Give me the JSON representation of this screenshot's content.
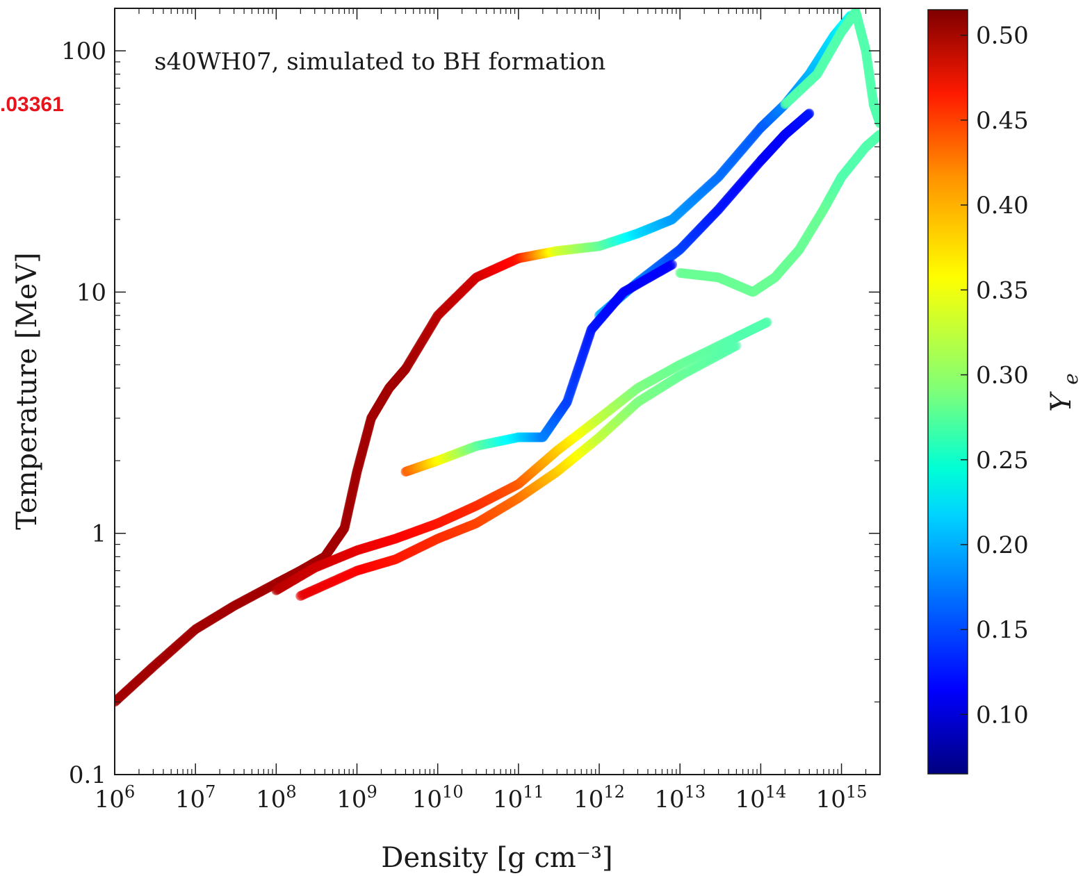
{
  "page_label": ".03361",
  "chart_data": {
    "type": "scatter",
    "annotation": "s40WH07, simulated to BH formation",
    "xlabel": "Density [g cm⁻³]",
    "ylabel": "Temperature [MeV]",
    "x_scale": "log",
    "y_scale": "log",
    "xlim": [
      1000000.0,
      3000000000000000.0
    ],
    "ylim": [
      0.1,
      150
    ],
    "x_ticks": [
      {
        "v": 1000000.0,
        "base": "10",
        "exp": "6"
      },
      {
        "v": 10000000.0,
        "base": "10",
        "exp": "7"
      },
      {
        "v": 100000000.0,
        "base": "10",
        "exp": "8"
      },
      {
        "v": 1000000000.0,
        "base": "10",
        "exp": "9"
      },
      {
        "v": 10000000000.0,
        "base": "10",
        "exp": "10"
      },
      {
        "v": 100000000000.0,
        "base": "10",
        "exp": "11"
      },
      {
        "v": 1000000000000.0,
        "base": "10",
        "exp": "12"
      },
      {
        "v": 10000000000000.0,
        "base": "10",
        "exp": "13"
      },
      {
        "v": 100000000000000.0,
        "base": "10",
        "exp": "14"
      },
      {
        "v": 1000000000000000.0,
        "base": "10",
        "exp": "15"
      }
    ],
    "y_ticks": [
      {
        "v": 0.1,
        "label": "0.1"
      },
      {
        "v": 1,
        "label": "1"
      },
      {
        "v": 10,
        "label": "10"
      },
      {
        "v": 100,
        "label": "100"
      }
    ],
    "colorbar": {
      "label": "Y_e",
      "colormap": "jet",
      "range": [
        0.065,
        0.515
      ],
      "ticks": [
        "0.10",
        "0.15",
        "0.20",
        "0.25",
        "0.30",
        "0.35",
        "0.40",
        "0.45",
        "0.50"
      ],
      "tick_values": [
        0.1,
        0.15,
        0.2,
        0.25,
        0.3,
        0.35,
        0.4,
        0.45,
        0.5
      ]
    },
    "series": [
      {
        "points": [
          [
            1000000.0,
            0.2
          ],
          [
            3000000.0,
            0.28
          ],
          [
            10000000.0,
            0.4
          ],
          [
            30000000.0,
            0.5
          ],
          [
            100000000.0,
            0.62
          ],
          [
            200000000.0,
            0.7
          ],
          [
            400000000.0,
            0.8
          ],
          [
            700000000.0,
            1.05
          ],
          [
            1000000000.0,
            1.8
          ],
          [
            1500000000.0,
            3.0
          ],
          [
            2500000000.0,
            4.0
          ],
          [
            4000000000.0,
            4.8
          ],
          [
            10000000000.0,
            8.0
          ],
          [
            30000000000.0,
            11.5
          ],
          [
            100000000000.0,
            13.8
          ]
        ],
        "ye": [
          0.5,
          0.5,
          0.5,
          0.5,
          0.5,
          0.5,
          0.5,
          0.5,
          0.5,
          0.5,
          0.5,
          0.5,
          0.49,
          0.48,
          0.45
        ]
      },
      {
        "points": [
          [
            100000000.0,
            0.58
          ],
          [
            300000000.0,
            0.72
          ],
          [
            1000000000.0,
            0.85
          ],
          [
            3000000000.0,
            0.95
          ],
          [
            10000000000.0,
            1.1
          ],
          [
            30000000000.0,
            1.3
          ],
          [
            100000000000.0,
            1.6
          ],
          [
            300000000000.0,
            2.2
          ],
          [
            1000000000000.0,
            3.0
          ],
          [
            3000000000000.0,
            4.0
          ],
          [
            10000000000000.0,
            5.0
          ],
          [
            50000000000000.0,
            6.5
          ],
          [
            120000000000000.0,
            7.5
          ]
        ],
        "ye": [
          0.49,
          0.48,
          0.47,
          0.46,
          0.45,
          0.44,
          0.42,
          0.37,
          0.32,
          0.29,
          0.28,
          0.27,
          0.27
        ]
      },
      {
        "points": [
          [
            200000000.0,
            0.55
          ],
          [
            1000000000.0,
            0.7
          ],
          [
            3000000000.0,
            0.78
          ],
          [
            10000000000.0,
            0.95
          ],
          [
            30000000000.0,
            1.1
          ],
          [
            100000000000.0,
            1.4
          ],
          [
            300000000000.0,
            1.8
          ],
          [
            1000000000000.0,
            2.5
          ],
          [
            3000000000000.0,
            3.5
          ],
          [
            10000000000000.0,
            4.5
          ],
          [
            50000000000000.0,
            6.0
          ]
        ],
        "ye": [
          0.47,
          0.46,
          0.45,
          0.44,
          0.43,
          0.41,
          0.37,
          0.32,
          0.29,
          0.28,
          0.27
        ]
      },
      {
        "points": [
          [
            100000000000.0,
            13.8
          ],
          [
            300000000000.0,
            14.8
          ],
          [
            1000000000000.0,
            15.5
          ],
          [
            3000000000000.0,
            17.5
          ],
          [
            8000000000000.0,
            20.0
          ],
          [
            30000000000000.0,
            30.0
          ],
          [
            100000000000000.0,
            48.0
          ],
          [
            200000000000000.0,
            60.0
          ],
          [
            400000000000000.0,
            80.0
          ],
          [
            800000000000000.0,
            115.0
          ],
          [
            1300000000000000.0,
            140.0
          ]
        ],
        "ye": [
          0.45,
          0.33,
          0.28,
          0.22,
          0.19,
          0.17,
          0.16,
          0.18,
          0.2,
          0.22,
          0.24
        ]
      },
      {
        "points": [
          [
            1000000000000.0,
            8.0
          ],
          [
            3000000000000.0,
            11.0
          ],
          [
            10000000000000.0,
            15.0
          ],
          [
            30000000000000.0,
            22.0
          ],
          [
            100000000000000.0,
            35.0
          ],
          [
            200000000000000.0,
            45.0
          ],
          [
            400000000000000.0,
            55.0
          ]
        ],
        "ye": [
          0.2,
          0.18,
          0.15,
          0.13,
          0.12,
          0.12,
          0.13
        ]
      },
      {
        "points": [
          [
            4000000000.0,
            1.8
          ],
          [
            10000000000.0,
            2.0
          ],
          [
            30000000000.0,
            2.3
          ],
          [
            100000000000.0,
            2.5
          ],
          [
            200000000000.0,
            2.5
          ],
          [
            400000000000.0,
            3.5
          ],
          [
            800000000000.0,
            7.0
          ],
          [
            2000000000000.0,
            10.0
          ],
          [
            8000000000000.0,
            13.0
          ]
        ],
        "ye": [
          0.42,
          0.35,
          0.28,
          0.22,
          0.18,
          0.15,
          0.13,
          0.12,
          0.12
        ]
      },
      {
        "points": [
          [
            10000000000000.0,
            12.0
          ],
          [
            30000000000000.0,
            11.5
          ],
          [
            80000000000000.0,
            10.0
          ],
          [
            150000000000000.0,
            11.5
          ],
          [
            300000000000000.0,
            15.0
          ],
          [
            600000000000000.0,
            22.0
          ],
          [
            1000000000000000.0,
            30.0
          ],
          [
            2000000000000000.0,
            40.0
          ],
          [
            3000000000000000.0,
            45.0
          ]
        ],
        "ye": [
          0.28,
          0.28,
          0.28,
          0.28,
          0.28,
          0.28,
          0.27,
          0.27,
          0.27
        ]
      },
      {
        "points": [
          [
            200000000000000.0,
            60.0
          ],
          [
            500000000000000.0,
            80.0
          ],
          [
            1000000000000000.0,
            120.0
          ],
          [
            1500000000000000.0,
            145.0
          ],
          [
            2000000000000000.0,
            100.0
          ],
          [
            2500000000000000.0,
            60.0
          ],
          [
            3000000000000000.0,
            50.0
          ]
        ],
        "ye": [
          0.27,
          0.27,
          0.27,
          0.27,
          0.27,
          0.27,
          0.27
        ]
      }
    ]
  }
}
